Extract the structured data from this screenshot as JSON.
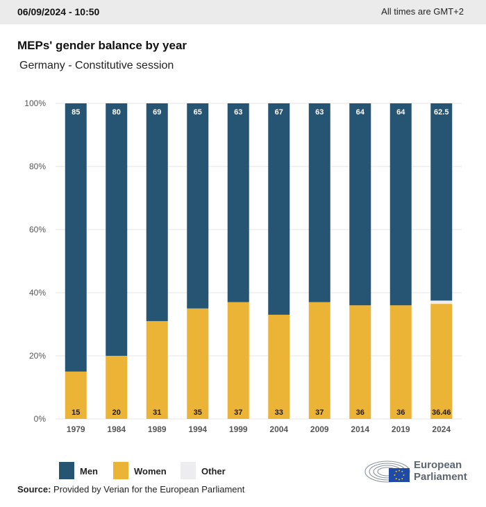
{
  "header": {
    "datetime": "06/09/2024 - 10:50",
    "timezone_note": "All times are GMT+2"
  },
  "title": "MEPs' gender balance by year",
  "subtitle": "Germany - Constitutive session",
  "colors": {
    "men": "#265473",
    "women": "#ecb437",
    "other": "#ededf0",
    "gridline": "#e6e6e6",
    "axis_text": "#555555"
  },
  "chart_data": {
    "type": "bar",
    "stacked": true,
    "categories": [
      "1979",
      "1984",
      "1989",
      "1994",
      "1999",
      "2004",
      "2009",
      "2014",
      "2019",
      "2024"
    ],
    "series": [
      {
        "name": "Women",
        "values": [
          15,
          20,
          31,
          35,
          37,
          33,
          37,
          36,
          36,
          36.46
        ]
      },
      {
        "name": "Men",
        "values": [
          85,
          80,
          69,
          65,
          63,
          67,
          63,
          64,
          64,
          62.5
        ]
      },
      {
        "name": "Other",
        "values": [
          0,
          0,
          0,
          0,
          0,
          0,
          0,
          0,
          0,
          1.04
        ]
      }
    ],
    "data_labels": {
      "men": [
        "85",
        "80",
        "69",
        "65",
        "63",
        "67",
        "63",
        "64",
        "64",
        "62.5"
      ],
      "women": [
        "15",
        "20",
        "31",
        "35",
        "37",
        "33",
        "37",
        "36",
        "36",
        "36.46"
      ]
    },
    "yticks": [
      "0%",
      "20%",
      "40%",
      "60%",
      "80%",
      "100%"
    ],
    "ylim": [
      0,
      100
    ],
    "grid": true,
    "legend_position": "bottom-left"
  },
  "legend": {
    "men": "Men",
    "women": "Women",
    "other": "Other"
  },
  "source": {
    "label": "Source:",
    "text": " Provided by Verian for the European Parliament"
  },
  "logo": {
    "line1": "European",
    "line2": "Parliament"
  }
}
